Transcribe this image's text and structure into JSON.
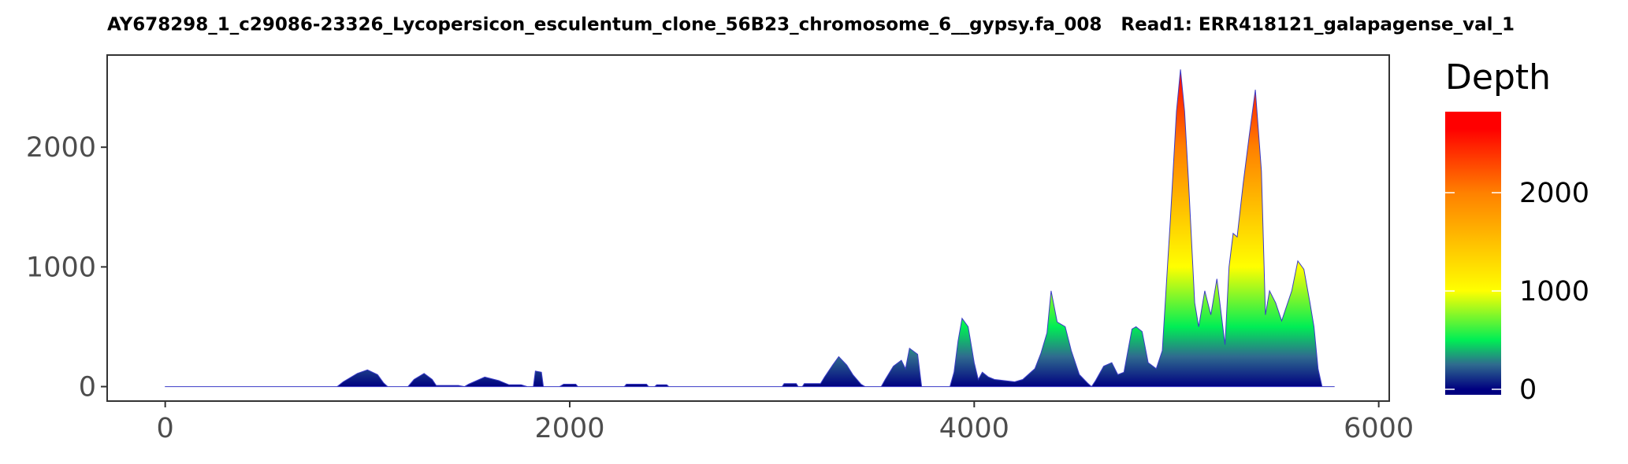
{
  "chart_data": {
    "type": "area",
    "title": "AY678298_1_c29086-23326_Lycopersicon_esculentum_clone_56B23_chromosome_6__gypsy.fa_008   Read1: ERR418121_galapagense_val_1",
    "x": [
      0,
      850,
      880,
      950,
      1000,
      1050,
      1080,
      1100,
      1200,
      1230,
      1280,
      1320,
      1340,
      1450,
      1480,
      1500,
      1580,
      1650,
      1700,
      1760,
      1790,
      1820,
      1830,
      1860,
      1870,
      1950,
      1970,
      2030,
      2040,
      2270,
      2280,
      2380,
      2390,
      2420,
      2430,
      2480,
      2490,
      3050,
      3060,
      3120,
      3130,
      3150,
      3160,
      3240,
      3260,
      3300,
      3330,
      3370,
      3400,
      3440,
      3460,
      3540,
      3560,
      3600,
      3640,
      3660,
      3680,
      3720,
      3740,
      3880,
      3900,
      3920,
      3940,
      3970,
      4000,
      4020,
      4040,
      4070,
      4100,
      4150,
      4200,
      4240,
      4300,
      4330,
      4360,
      4380,
      4410,
      4450,
      4480,
      4520,
      4560,
      4580,
      4600,
      4640,
      4680,
      4710,
      4740,
      4780,
      4800,
      4830,
      4860,
      4900,
      4930,
      4970,
      5000,
      5020,
      5040,
      5060,
      5090,
      5110,
      5140,
      5170,
      5200,
      5240,
      5260,
      5280,
      5300,
      5330,
      5360,
      5390,
      5420,
      5440,
      5460,
      5490,
      5520,
      5540,
      5570,
      5600,
      5630,
      5660,
      5680,
      5700,
      5720,
      5780
    ],
    "values": [
      0,
      0,
      40,
      110,
      140,
      100,
      30,
      0,
      0,
      60,
      110,
      60,
      10,
      10,
      0,
      20,
      80,
      50,
      15,
      15,
      0,
      0,
      130,
      120,
      0,
      0,
      20,
      20,
      0,
      0,
      20,
      20,
      0,
      0,
      15,
      15,
      0,
      0,
      25,
      25,
      0,
      0,
      25,
      25,
      80,
      180,
      250,
      180,
      100,
      20,
      0,
      0,
      60,
      170,
      220,
      150,
      320,
      270,
      0,
      0,
      120,
      380,
      570,
      500,
      200,
      60,
      120,
      80,
      60,
      50,
      40,
      60,
      150,
      280,
      450,
      800,
      540,
      500,
      300,
      100,
      30,
      0,
      50,
      170,
      200,
      100,
      120,
      480,
      500,
      460,
      200,
      150,
      300,
      1400,
      2300,
      2650,
      2300,
      1700,
      700,
      500,
      800,
      600,
      900,
      350,
      1000,
      1280,
      1250,
      1700,
      2100,
      2480,
      1800,
      600,
      800,
      700,
      550,
      650,
      800,
      1050,
      980,
      700,
      500,
      150,
      0,
      0
    ],
    "xlim": [
      -287,
      6052
    ],
    "ylim": [
      -121,
      2770
    ],
    "xticks": [
      0,
      2000,
      4000,
      6000
    ],
    "yticks": [
      0,
      1000,
      2000
    ],
    "line_color": "#3b3bc8",
    "colorbar": {
      "title": "Depth",
      "lim": [
        -56,
        2824
      ],
      "ticks": [
        0,
        1000,
        2000
      ],
      "stops": [
        {
          "value": 0,
          "color": "#000080"
        },
        {
          "value": 250,
          "color": "#2f6a8f"
        },
        {
          "value": 500,
          "color": "#00ee55"
        },
        {
          "value": 1000,
          "color": "#ffff00"
        },
        {
          "value": 2000,
          "color": "#ff8000"
        },
        {
          "value": 2650,
          "color": "#ff0000"
        }
      ]
    }
  }
}
